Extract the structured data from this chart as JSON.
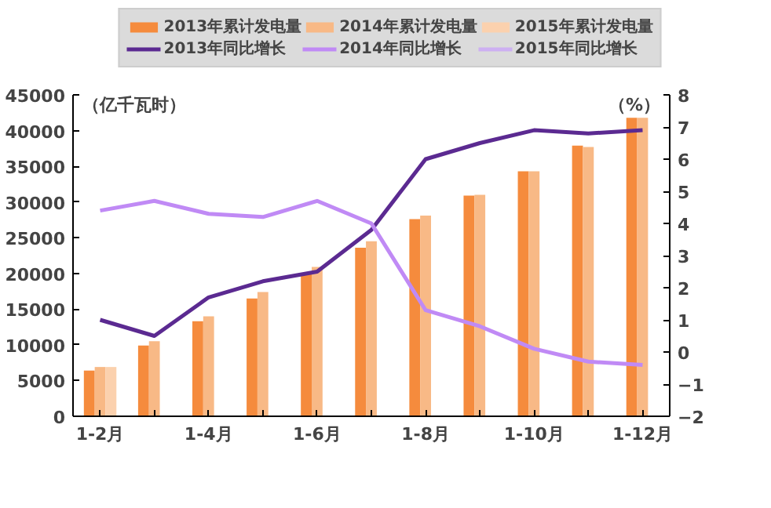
{
  "chart_data": {
    "type": "bar",
    "ylabel": "（亿千瓦时）",
    "y2label": "（%）",
    "categories": [
      "1-2月",
      null,
      "1-4月",
      null,
      "1-6月",
      null,
      "1-8月",
      null,
      "1-10月",
      null,
      "1-12月"
    ],
    "series": [
      {
        "name": "2013年累计发电量",
        "color": "#f58b3d",
        "values": [
          6400,
          9900,
          13300,
          16500,
          19900,
          23600,
          27600,
          30900,
          34300,
          37900,
          41800
        ]
      },
      {
        "name": "2014年累计发电量",
        "color": "#f8b986",
        "values": [
          6900,
          10500,
          14000,
          17400,
          20900,
          24500,
          28100,
          31000,
          34300,
          37700,
          41800
        ]
      },
      {
        "name": "2015年累计发电量",
        "color": "#fbd1ae",
        "values": [
          6900,
          null,
          null,
          null,
          null,
          null,
          null,
          null,
          null,
          null,
          null
        ]
      },
      {
        "name": "2013年同比增长",
        "type": "line",
        "axis": "y2",
        "color": "#5b2a91",
        "values": [
          1.0,
          0.5,
          1.7,
          2.2,
          2.5,
          3.8,
          6.0,
          6.5,
          6.9,
          6.8,
          6.9
        ]
      },
      {
        "name": "2014年同比增长",
        "type": "line",
        "axis": "y2",
        "color": "#c08af5",
        "values": [
          4.4,
          4.7,
          4.3,
          4.2,
          4.7,
          4.0,
          1.3,
          0.8,
          0.1,
          -0.3,
          -0.4
        ]
      },
      {
        "name": "2015年同比增长",
        "type": "line",
        "axis": "y2",
        "color": "#cdb0f2",
        "values": [
          null,
          null,
          null,
          null,
          null,
          null,
          null,
          null,
          null,
          null,
          null
        ]
      }
    ],
    "ylim": [
      0,
      45000
    ],
    "yticks": [
      0,
      5000,
      10000,
      15000,
      20000,
      25000,
      30000,
      35000,
      40000,
      45000
    ],
    "y2lim": [
      -2,
      8
    ],
    "y2ticks": [
      -2,
      -1,
      0,
      1,
      2,
      3,
      4,
      5,
      6,
      7,
      8
    ],
    "grid": false,
    "legend": "top",
    "line_style": "solid"
  }
}
